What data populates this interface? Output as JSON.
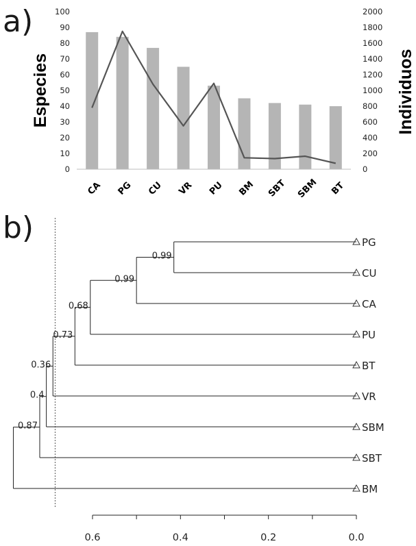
{
  "chart_data": [
    {
      "panel": "a)",
      "type": "bar+line",
      "categories": [
        "CA",
        "PG",
        "CU",
        "VR",
        "PU",
        "BM",
        "SBT",
        "SBM",
        "BT"
      ],
      "series": [
        {
          "name": "Especies",
          "kind": "bar",
          "axis": "left",
          "color": "#b5b5b5",
          "values": [
            87,
            84,
            77,
            65,
            53,
            45,
            42,
            41,
            40
          ]
        },
        {
          "name": "Individuos",
          "kind": "line",
          "axis": "right",
          "color": "#555555",
          "values": [
            780,
            1750,
            1080,
            550,
            1090,
            145,
            135,
            165,
            75
          ]
        }
      ],
      "ylabel": "Especies",
      "ylabel_right": "Individuos",
      "ylim": [
        0,
        100
      ],
      "ylim_right": [
        0,
        2000
      ],
      "yticks": [
        "0",
        "10",
        "20",
        "30",
        "40",
        "50",
        "60",
        "70",
        "80",
        "90",
        "100"
      ],
      "yticks_right": [
        "0",
        "200",
        "400",
        "600",
        "800",
        "1000",
        "1200",
        "1400",
        "1600",
        "1800",
        "2000"
      ]
    },
    {
      "panel": "b)",
      "type": "dendrogram",
      "leaves": [
        "PG",
        "CU",
        "CA",
        "PU",
        "BT",
        "VR",
        "SBM",
        "SBT",
        "BM"
      ],
      "merges": [
        {
          "children": [
            "PG",
            "CU"
          ],
          "height": 0.415,
          "support": "0.99"
        },
        {
          "children": [
            "(PG,CU)",
            "CA"
          ],
          "height": 0.5,
          "support": "0.99"
        },
        {
          "children": [
            "(PG,CU,CA)",
            "PU"
          ],
          "height": 0.605,
          "support": "0.68"
        },
        {
          "children": [
            "(PG,CU,CA,PU)",
            "BT"
          ],
          "height": 0.64,
          "support": "0.73"
        },
        {
          "children": [
            "(…,BT)",
            "VR"
          ],
          "height": 0.69,
          "support": "0.36"
        },
        {
          "children": [
            "(…,VR)",
            "SBM"
          ],
          "height": 0.705,
          "support": "0.4"
        },
        {
          "children": [
            "(…,SBM)",
            "SBT"
          ],
          "height": 0.72,
          "support": "0.87"
        },
        {
          "children": [
            "(…,SBT)",
            "BM"
          ],
          "height": 0.78,
          "support": ""
        }
      ],
      "cut_height": 0.685,
      "xlim": [
        0.0,
        0.6
      ],
      "xticks": [
        "0.6",
        "0.4",
        "0.2",
        "0.0"
      ]
    }
  ]
}
